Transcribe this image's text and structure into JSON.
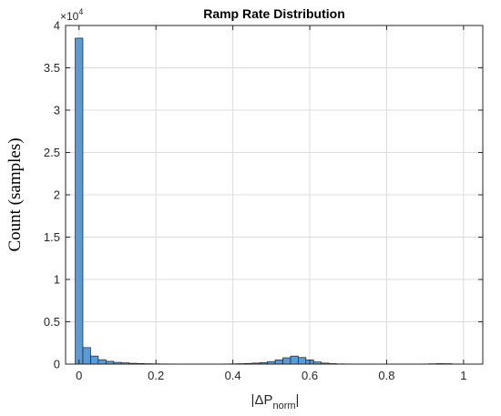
{
  "chart_data": {
    "type": "bar",
    "title": "Ramp Rate Distribution",
    "xlabel": {
      "main": "|ΔP",
      "sub": "norm",
      "end": "|"
    },
    "ylabel": "Count (samples)",
    "xlim": [
      -0.035,
      1.05
    ],
    "ylim": [
      0,
      40000
    ],
    "x_ticks": [
      0,
      0.2,
      0.4,
      0.6,
      0.8,
      1
    ],
    "x_tick_labels": [
      "0",
      "0.2",
      "0.4",
      "0.6",
      "0.8",
      "1"
    ],
    "y_ticks": [
      0,
      5000,
      10000,
      15000,
      20000,
      25000,
      30000,
      35000,
      40000
    ],
    "y_tick_labels": [
      "0",
      "0.5",
      "1",
      "1.5",
      "2",
      "2.5",
      "3",
      "3.5",
      "4"
    ],
    "y_exponent": {
      "base": "×10",
      "power": "4"
    },
    "grid": true,
    "bar_color": "#5b9bd5",
    "bin_edges": [
      -0.01,
      0.01,
      0.03,
      0.05,
      0.07,
      0.09,
      0.11,
      0.13,
      0.15,
      0.17,
      0.19,
      0.21,
      0.23,
      0.25,
      0.27,
      0.29,
      0.31,
      0.33,
      0.35,
      0.37,
      0.39,
      0.41,
      0.43,
      0.45,
      0.47,
      0.49,
      0.51,
      0.53,
      0.55,
      0.57,
      0.59,
      0.61,
      0.63,
      0.65,
      0.67,
      0.69,
      0.71,
      0.73,
      0.75,
      0.77,
      0.79,
      0.81,
      0.83,
      0.85,
      0.87,
      0.89,
      0.91,
      0.93,
      0.95,
      0.97,
      0.99,
      1.01,
      1.03
    ],
    "values": [
      38500,
      1950,
      950,
      520,
      330,
      210,
      150,
      100,
      70,
      50,
      35,
      25,
      20,
      15,
      15,
      12,
      12,
      12,
      15,
      20,
      30,
      50,
      80,
      120,
      180,
      300,
      500,
      750,
      950,
      780,
      500,
      250,
      120,
      60,
      30,
      20,
      15,
      12,
      10,
      10,
      10,
      10,
      10,
      10,
      15,
      20,
      40,
      60,
      50,
      20,
      10,
      5
    ]
  }
}
